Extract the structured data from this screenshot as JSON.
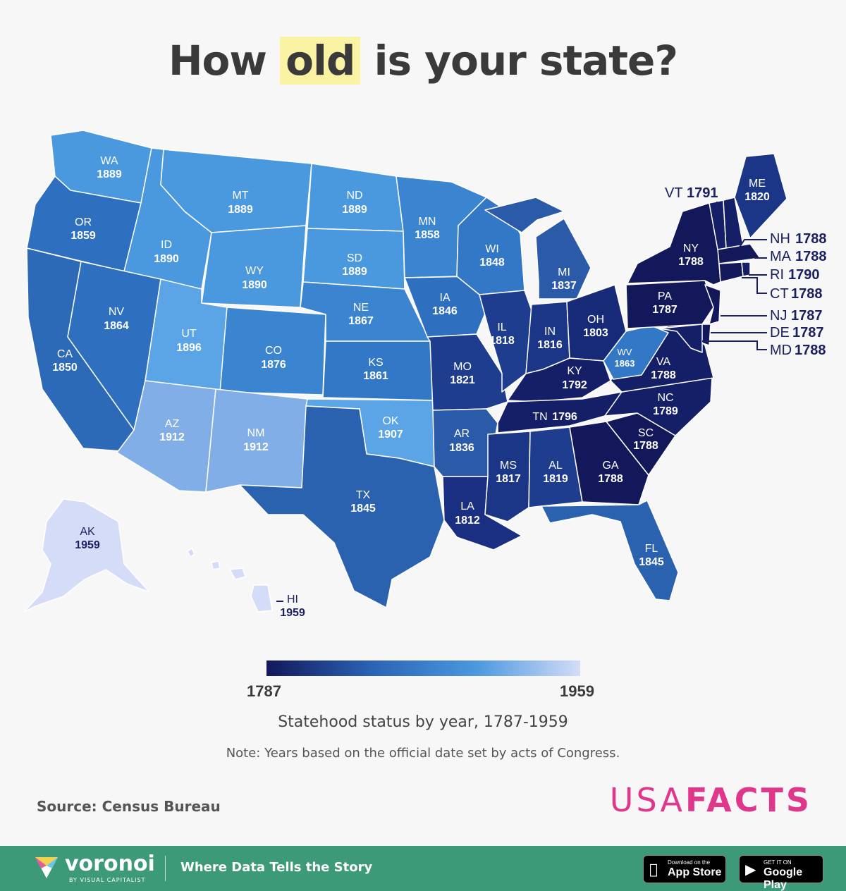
{
  "title": {
    "pre": "How ",
    "highlight": "old",
    "post": " is your state?"
  },
  "colors": {
    "darkest": "#12185a",
    "mid": "#2b63b4",
    "light": "#4a98de",
    "lightest": "#d4dcf8",
    "highlight": "#fbf3a4",
    "brand": "#e0368c",
    "footer": "#3c9a78"
  },
  "states": {
    "WA": {
      "abbr": "WA",
      "year": "1889"
    },
    "OR": {
      "abbr": "OR",
      "year": "1859"
    },
    "CA": {
      "abbr": "CA",
      "year": "1850"
    },
    "ID": {
      "abbr": "ID",
      "year": "1890"
    },
    "NV": {
      "abbr": "NV",
      "year": "1864"
    },
    "MT": {
      "abbr": "MT",
      "year": "1889"
    },
    "WY": {
      "abbr": "WY",
      "year": "1890"
    },
    "UT": {
      "abbr": "UT",
      "year": "1896"
    },
    "AZ": {
      "abbr": "AZ",
      "year": "1912"
    },
    "CO": {
      "abbr": "CO",
      "year": "1876"
    },
    "NM": {
      "abbr": "NM",
      "year": "1912"
    },
    "ND": {
      "abbr": "ND",
      "year": "1889"
    },
    "SD": {
      "abbr": "SD",
      "year": "1889"
    },
    "NE": {
      "abbr": "NE",
      "year": "1867"
    },
    "KS": {
      "abbr": "KS",
      "year": "1861"
    },
    "OK": {
      "abbr": "OK",
      "year": "1907"
    },
    "TX": {
      "abbr": "TX",
      "year": "1845"
    },
    "MN": {
      "abbr": "MN",
      "year": "1858"
    },
    "IA": {
      "abbr": "IA",
      "year": "1846"
    },
    "MO": {
      "abbr": "MO",
      "year": "1821"
    },
    "AR": {
      "abbr": "AR",
      "year": "1836"
    },
    "LA": {
      "abbr": "LA",
      "year": "1812"
    },
    "WI": {
      "abbr": "WI",
      "year": "1848"
    },
    "IL": {
      "abbr": "IL",
      "year": "1818"
    },
    "MI": {
      "abbr": "MI",
      "year": "1837"
    },
    "IN": {
      "abbr": "IN",
      "year": "1816"
    },
    "OH": {
      "abbr": "OH",
      "year": "1803"
    },
    "KY": {
      "abbr": "KY",
      "year": "1792"
    },
    "TN": {
      "abbr": "TN",
      "year": "1796"
    },
    "MS": {
      "abbr": "MS",
      "year": "1817"
    },
    "AL": {
      "abbr": "AL",
      "year": "1819"
    },
    "GA": {
      "abbr": "GA",
      "year": "1788"
    },
    "FL": {
      "abbr": "FL",
      "year": "1845"
    },
    "SC": {
      "abbr": "SC",
      "year": "1788"
    },
    "NC": {
      "abbr": "NC",
      "year": "1789"
    },
    "VA": {
      "abbr": "VA",
      "year": "1788"
    },
    "WV": {
      "abbr": "WV",
      "year": "1863"
    },
    "PA": {
      "abbr": "PA",
      "year": "1787"
    },
    "NY": {
      "abbr": "NY",
      "year": "1788"
    },
    "ME": {
      "abbr": "ME",
      "year": "1820"
    },
    "VT": {
      "abbr": "VT",
      "year": "1791"
    },
    "NH": {
      "abbr": "NH",
      "year": "1788"
    },
    "MA": {
      "abbr": "MA",
      "year": "1788"
    },
    "RI": {
      "abbr": "RI",
      "year": "1790"
    },
    "CT": {
      "abbr": "CT",
      "year": "1788"
    },
    "NJ": {
      "abbr": "NJ",
      "year": "1787"
    },
    "DE": {
      "abbr": "DE",
      "year": "1787"
    },
    "MD": {
      "abbr": "MD",
      "year": "1788"
    },
    "AK": {
      "abbr": "AK",
      "year": "1959"
    },
    "HI": {
      "abbr": "HI",
      "year": "1959"
    }
  },
  "legend": {
    "min": "1787",
    "max": "1959"
  },
  "subtitle": "Statehood status by year, 1787-1959",
  "note": "Note: Years based on the official date set by acts of Congress.",
  "source": "Source: Census Bureau",
  "brand": {
    "light": "USA",
    "bold": "FACTS"
  },
  "footer": {
    "logo_name": "voronoi",
    "logo_sub": "BY VISUAL CAPITALIST",
    "tagline": "Where Data Tells the Story",
    "app_store_small": "Download on the",
    "app_store_big": "App Store",
    "google_small": "GET IT ON",
    "google_big": "Google Play",
    "apple_icon": "apple-icon",
    "play_icon": "play-icon"
  }
}
